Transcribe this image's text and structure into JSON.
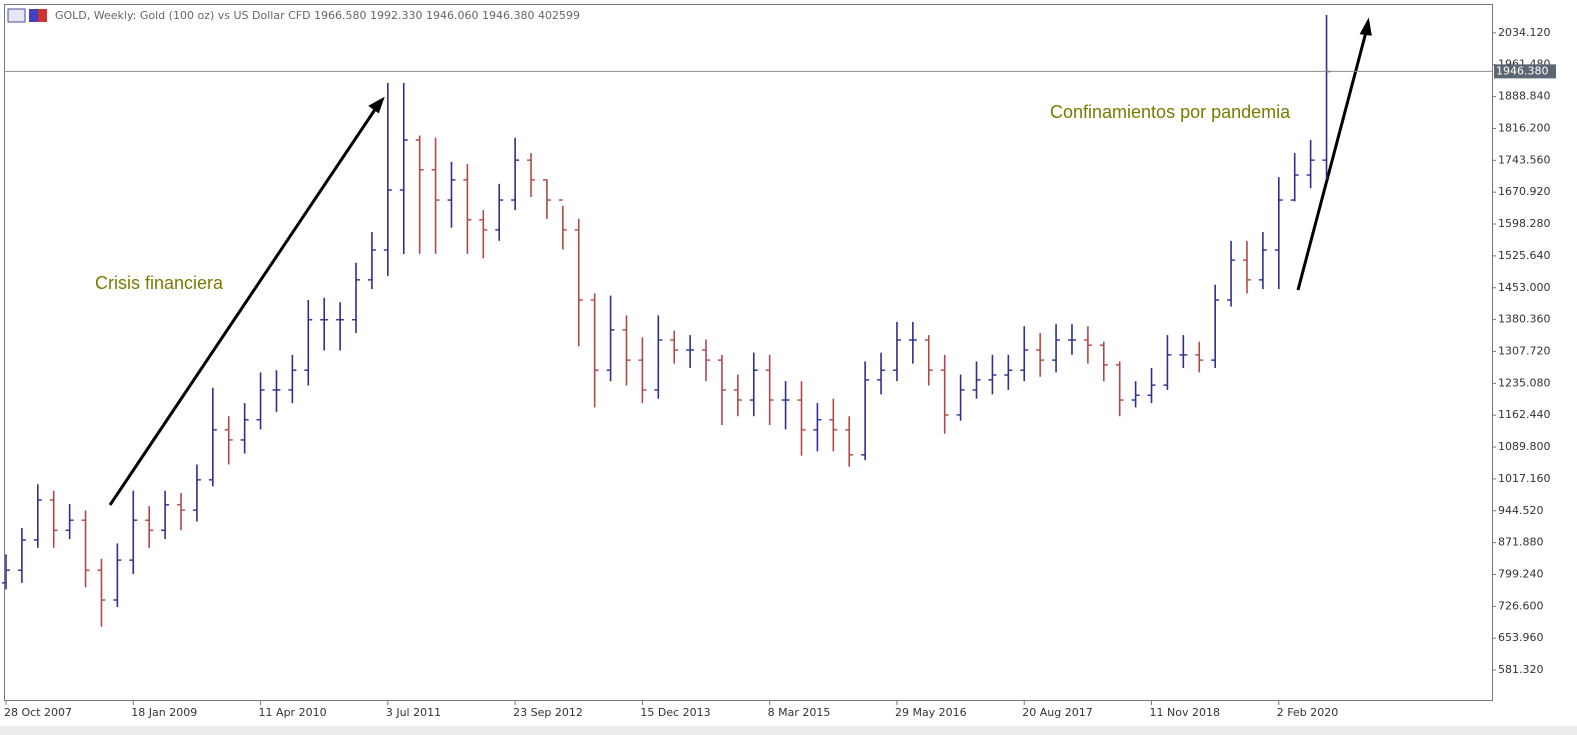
{
  "chart_data": {
    "type": "ohlc",
    "header": "GOLD, Weekly:  Gold (100 oz) vs US Dollar CFD  1966.580 1992.330 1946.060 1946.380  402599",
    "annotations": [
      "Crisis financiera",
      "Confinamientos por pandemia"
    ],
    "annotation_color": "#7a7a00",
    "up_color": "#2e2e8c",
    "down_color": "#b0474b",
    "categories": [
      "28 Oct 2007",
      null,
      null,
      null,
      null,
      null,
      null,
      null,
      "18 Jan 2009",
      null,
      null,
      null,
      null,
      null,
      null,
      null,
      "11 Apr 2010",
      null,
      null,
      null,
      null,
      null,
      null,
      null,
      "3 Jul 2011",
      null,
      null,
      null,
      null,
      null,
      null,
      null,
      "23 Sep 2012",
      null,
      null,
      null,
      null,
      null,
      null,
      null,
      "15 Dec 2013",
      null,
      null,
      null,
      null,
      null,
      null,
      null,
      "8 Mar 2015",
      null,
      null,
      null,
      null,
      null,
      null,
      null,
      "29 May 2016",
      null,
      null,
      null,
      null,
      null,
      null,
      null,
      "20 Aug 2017",
      null,
      null,
      null,
      null,
      null,
      null,
      null,
      "11 Nov 2018",
      null,
      null,
      null,
      null,
      null,
      null,
      null,
      "2 Feb 2020",
      null,
      null,
      null
    ],
    "open": [
      780,
      809,
      878,
      969,
      900,
      923,
      809,
      741,
      832,
      923,
      900,
      958,
      946,
      1015,
      1129,
      1106,
      1152,
      1220,
      1220,
      1265,
      1380,
      1380,
      1380,
      1471,
      1539,
      1676,
      1790,
      1722,
      1653,
      1699,
      1608,
      1585,
      1653,
      1744,
      1699,
      1653,
      1585,
      1425,
      1265,
      1357,
      1288,
      1220,
      1334,
      1311,
      1311,
      1288,
      1220,
      1197,
      1265,
      1197,
      1197,
      1129,
      1152,
      1129,
      1072,
      1243,
      1265,
      1334,
      1334,
      1265,
      1163,
      1220,
      1243,
      1254,
      1265,
      1311,
      1288,
      1334,
      1334,
      1322,
      1277,
      1197,
      1208,
      1231,
      1300,
      1300,
      1288,
      1425,
      1516,
      1471,
      1539,
      1653,
      1710,
      1744
    ],
    "high": [
      845,
      905,
      1005,
      990,
      960,
      945,
      835,
      870,
      990,
      955,
      990,
      985,
      1050,
      1225,
      1160,
      1190,
      1260,
      1265,
      1300,
      1425,
      1430,
      1420,
      1510,
      1580,
      1920,
      1920,
      1800,
      1795,
      1740,
      1735,
      1630,
      1690,
      1795,
      1760,
      1700,
      1640,
      1610,
      1440,
      1435,
      1390,
      1340,
      1390,
      1355,
      1345,
      1335,
      1300,
      1255,
      1305,
      1300,
      1240,
      1240,
      1190,
      1200,
      1160,
      1285,
      1305,
      1375,
      1375,
      1345,
      1300,
      1255,
      1285,
      1300,
      1300,
      1365,
      1350,
      1370,
      1370,
      1365,
      1330,
      1285,
      1240,
      1270,
      1345,
      1345,
      1330,
      1460,
      1560,
      1560,
      1580,
      1705,
      1760,
      1790,
      2075
    ],
    "low": [
      765,
      780,
      860,
      860,
      880,
      770,
      680,
      725,
      800,
      860,
      880,
      900,
      920,
      1000,
      1050,
      1075,
      1130,
      1170,
      1190,
      1230,
      1310,
      1310,
      1350,
      1450,
      1480,
      1530,
      1530,
      1530,
      1590,
      1530,
      1520,
      1560,
      1630,
      1660,
      1610,
      1540,
      1320,
      1180,
      1240,
      1230,
      1190,
      1200,
      1280,
      1270,
      1240,
      1140,
      1160,
      1160,
      1140,
      1130,
      1070,
      1080,
      1080,
      1045,
      1060,
      1210,
      1240,
      1280,
      1230,
      1120,
      1150,
      1200,
      1210,
      1220,
      1240,
      1250,
      1260,
      1300,
      1280,
      1240,
      1160,
      1180,
      1190,
      1220,
      1270,
      1260,
      1270,
      1410,
      1440,
      1450,
      1450,
      1650,
      1680,
      1700
    ],
    "close": [
      809,
      878,
      969,
      900,
      923,
      809,
      741,
      832,
      923,
      900,
      958,
      946,
      1015,
      1129,
      1106,
      1152,
      1220,
      1220,
      1265,
      1380,
      1380,
      1380,
      1471,
      1539,
      1676,
      1790,
      1722,
      1653,
      1699,
      1608,
      1585,
      1653,
      1744,
      1699,
      1653,
      1585,
      1425,
      1265,
      1357,
      1288,
      1220,
      1334,
      1311,
      1311,
      1288,
      1220,
      1197,
      1265,
      1197,
      1197,
      1129,
      1152,
      1129,
      1072,
      1243,
      1265,
      1334,
      1334,
      1265,
      1163,
      1220,
      1243,
      1254,
      1265,
      1311,
      1288,
      1334,
      1334,
      1322,
      1277,
      1197,
      1208,
      1231,
      1300,
      1300,
      1288,
      1425,
      1516,
      1471,
      1539,
      1653,
      1710,
      1744,
      1946
    ],
    "current_price": {
      "value": 1946.38,
      "label": "1946.380"
    },
    "ylim": [
      513,
      2100
    ],
    "yticks": [
      {
        "value": 2034.12,
        "label": "2034.120"
      },
      {
        "value": 1961.48,
        "label": "1961.480"
      },
      {
        "value": 1888.84,
        "label": "1888.840"
      },
      {
        "value": 1816.2,
        "label": "1816.200"
      },
      {
        "value": 1743.56,
        "label": "1743.560"
      },
      {
        "value": 1670.92,
        "label": "1670.920"
      },
      {
        "value": 1598.28,
        "label": "1598.280"
      },
      {
        "value": 1525.64,
        "label": "1525.640"
      },
      {
        "value": 1453,
        "label": "1453.000"
      },
      {
        "value": 1380.36,
        "label": "1380.360"
      },
      {
        "value": 1307.72,
        "label": "1307.720"
      },
      {
        "value": 1235.08,
        "label": "1235.080"
      },
      {
        "value": 1162.44,
        "label": "1162.440"
      },
      {
        "value": 1089.8,
        "label": "1089.800"
      },
      {
        "value": 1017.16,
        "label": "1017.160"
      },
      {
        "value": 944.52,
        "label": "944.520"
      },
      {
        "value": 871.88,
        "label": "871.880"
      },
      {
        "value": 799.24,
        "label": "799.240"
      },
      {
        "value": 726.6,
        "label": "726.600"
      },
      {
        "value": 653.96,
        "label": "653.960"
      },
      {
        "value": 581.32,
        "label": "581.320"
      }
    ]
  }
}
